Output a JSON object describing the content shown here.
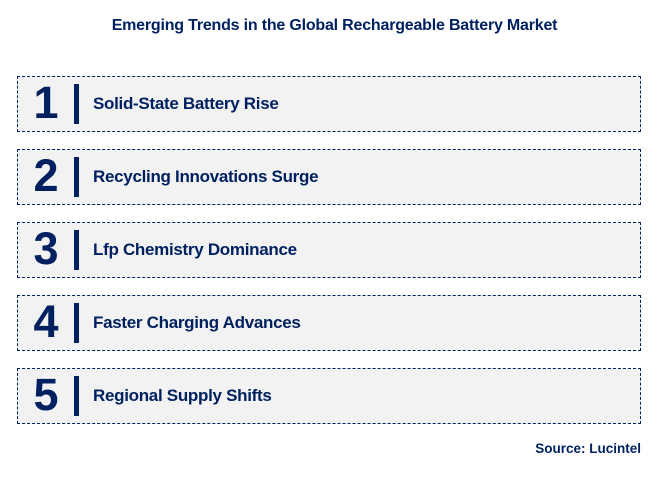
{
  "title": "Emerging Trends in the Global Rechargeable Battery Market",
  "trends": [
    {
      "number": "1",
      "label": "Solid-State Battery Rise"
    },
    {
      "number": "2",
      "label": "Recycling Innovations Surge"
    },
    {
      "number": "3",
      "label": "Lfp Chemistry Dominance"
    },
    {
      "number": "4",
      "label": "Faster Charging Advances"
    },
    {
      "number": "5",
      "label": "Regional Supply Shifts"
    }
  ],
  "source": "Source: Lucintel",
  "colors": {
    "accent": "#002060",
    "row_bg": "#f2f2f2",
    "page_bg": "#ffffff"
  }
}
